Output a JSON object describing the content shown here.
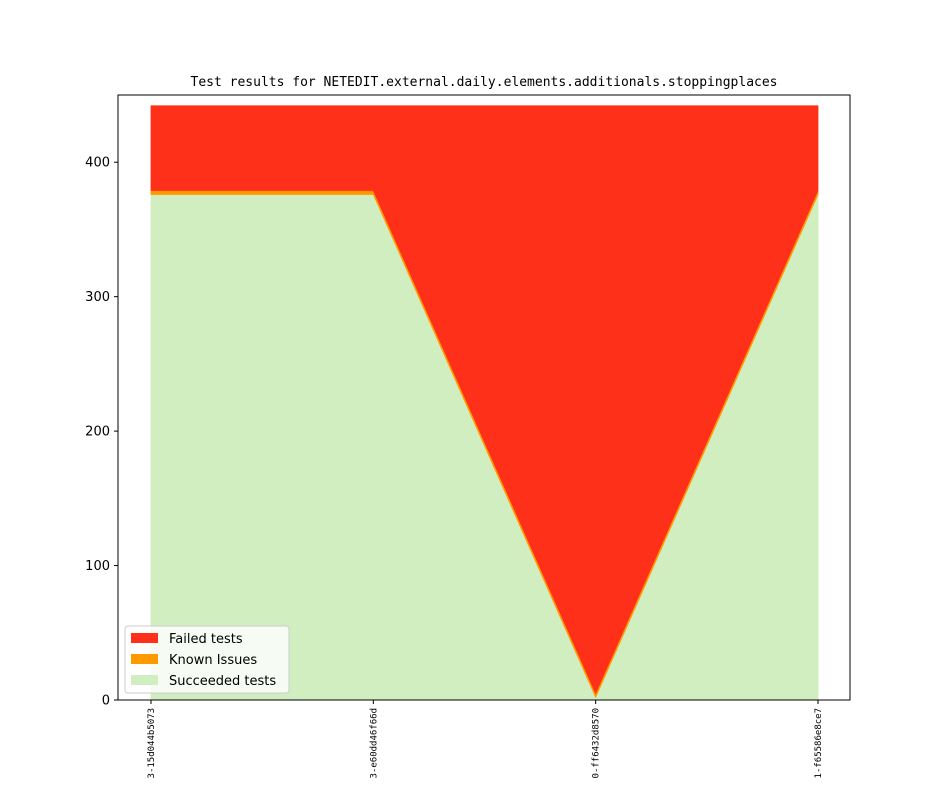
{
  "chart_data": {
    "type": "area",
    "title": "Test results for NETEDIT.external.daily.elements.additionals.stoppingplaces",
    "xlabel": "",
    "ylabel": "",
    "categories": [
      "3-15d044b5073",
      "3-e60dd46f66d",
      "0-ff6432d8570",
      "1-f65586e8ce7"
    ],
    "ylim": [
      0,
      450
    ],
    "yticks": [
      0,
      100,
      200,
      300,
      400
    ],
    "stacked": true,
    "series": [
      {
        "name": "Succeeded tests",
        "color": "#d0eec0",
        "values": [
          376,
          376,
          2,
          376
        ]
      },
      {
        "name": "Known Issues",
        "color": "#ff9900",
        "values": [
          3,
          3,
          3,
          3
        ]
      },
      {
        "name": "Failed tests",
        "color": "#ff3019",
        "values": [
          63,
          63,
          437,
          63
        ]
      }
    ],
    "legend": {
      "location": "lower-left",
      "entries": [
        "Failed tests",
        "Known Issues",
        "Succeeded tests"
      ]
    },
    "grid": false
  }
}
